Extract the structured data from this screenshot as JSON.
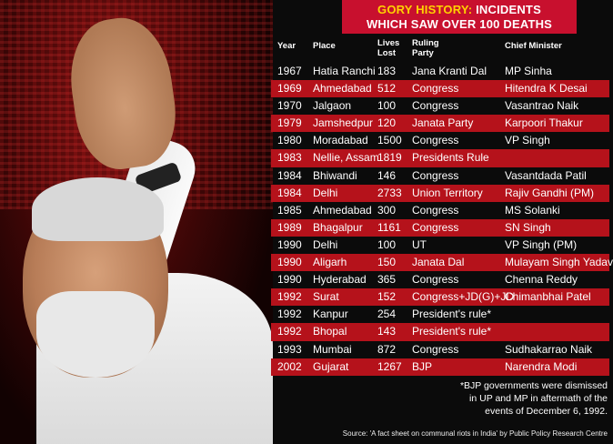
{
  "header": {
    "title_highlight": "GORY HISTORY:",
    "title_rest": " INCIDENTS",
    "title_line2": "WHICH SAW OVER 100 DEATHS"
  },
  "columns": {
    "year": "Year",
    "place": "Place",
    "lives_line1": "Lives",
    "lives_line2": "Lost",
    "party_line1": "Ruling",
    "party_line2": "Party",
    "cm": "Chief Minister"
  },
  "rows": [
    {
      "year": "1967",
      "place": "Hatia Ranchi",
      "lives": "183",
      "party": "Jana Kranti Dal",
      "cm": "MP Sinha"
    },
    {
      "year": "1969",
      "place": "Ahmedabad",
      "lives": "512",
      "party": "Congress",
      "cm": "Hitendra K Desai"
    },
    {
      "year": "1970",
      "place": "Jalgaon",
      "lives": "100",
      "party": "Congress",
      "cm": "Vasantrao Naik"
    },
    {
      "year": "1979",
      "place": "Jamshedpur",
      "lives": "120",
      "party": "Janata Party",
      "cm": "Karpoori Thakur"
    },
    {
      "year": "1980",
      "place": "Moradabad",
      "lives": "1500",
      "party": "Congress",
      "cm": "VP Singh"
    },
    {
      "year": "1983",
      "place": "Nellie, Assam",
      "lives": "1819",
      "party": "Presidents Rule",
      "cm": ""
    },
    {
      "year": "1984",
      "place": "Bhiwandi",
      "lives": "146",
      "party": "Congress",
      "cm": "Vasantdada Patil"
    },
    {
      "year": "1984",
      "place": "Delhi",
      "lives": "2733",
      "party": "Union Territory",
      "cm": "Rajiv Gandhi (PM)"
    },
    {
      "year": "1985",
      "place": "Ahmedabad",
      "lives": "300",
      "party": "Congress",
      "cm": "MS Solanki"
    },
    {
      "year": "1989",
      "place": "Bhagalpur",
      "lives": "1161",
      "party": "Congress",
      "cm": "SN Singh"
    },
    {
      "year": "1990",
      "place": "Delhi",
      "lives": "100",
      "party": "UT",
      "cm": "VP Singh (PM)"
    },
    {
      "year": "1990",
      "place": "Aligarh",
      "lives": "150",
      "party": "Janata Dal",
      "cm": "Mulayam Singh Yadav"
    },
    {
      "year": "1990",
      "place": "Hyderabad",
      "lives": "365",
      "party": "Congress",
      "cm": "Chenna Reddy"
    },
    {
      "year": "1992",
      "place": "Surat",
      "lives": "152",
      "party": "Congress+JD(G)+JD",
      "cm": "Chimanbhai Patel"
    },
    {
      "year": "1992",
      "place": "Kanpur",
      "lives": "254",
      "party": "President's rule*",
      "cm": ""
    },
    {
      "year": "1992",
      "place": "Bhopal",
      "lives": "143",
      "party": "President's rule*",
      "cm": ""
    },
    {
      "year": "1993",
      "place": "Mumbai",
      "lives": "872",
      "party": "Congress",
      "cm": "Sudhakarrao Naik"
    },
    {
      "year": "2002",
      "place": "Gujarat",
      "lives": "1267",
      "party": "BJP",
      "cm": "Narendra Modi"
    }
  ],
  "note": {
    "line1": "*BJP governments were dismissed",
    "line2": "in UP and MP in aftermath of the",
    "line3": "events of December 6, 1992."
  },
  "source": "Source:  'A fact sheet on communal riots in India' by Public Policy Research Centre",
  "colors": {
    "accent_red": "#b5121b",
    "header_red": "#c8102e",
    "highlight_yellow": "#ffd200"
  }
}
